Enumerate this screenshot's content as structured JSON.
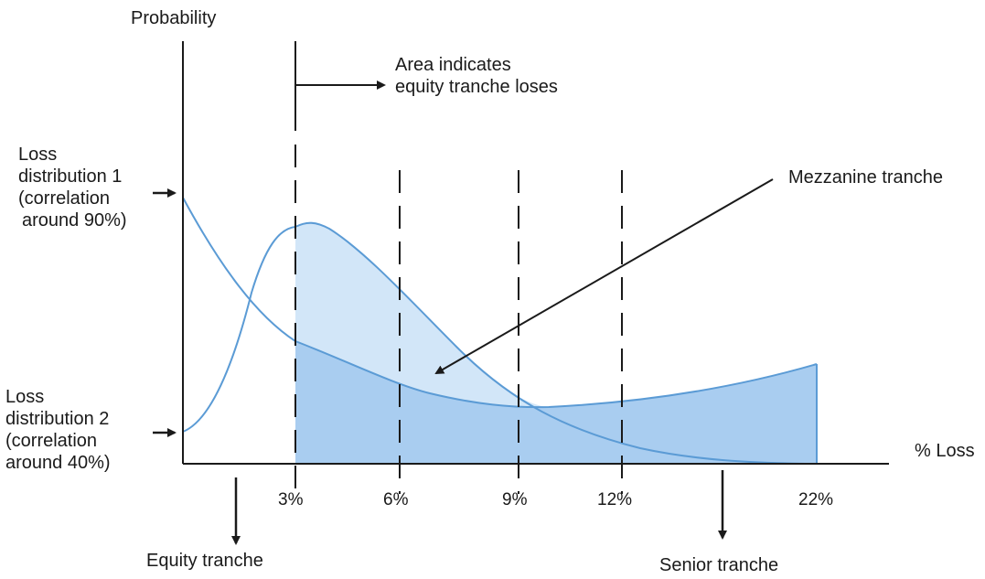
{
  "y_axis_label": "Probability",
  "x_axis_label": "% Loss",
  "ticks": [
    "3%",
    "6%",
    "9%",
    "12%",
    "22%"
  ],
  "annotations": {
    "area_note": [
      "Area indicates",
      "equity tranche loses"
    ],
    "mezzanine": "Mezzanine tranche",
    "equity": "Equity tranche",
    "senior": "Senior tranche",
    "dist1": [
      "Loss",
      "distribution 1",
      "(correlation",
      "around 90%)"
    ],
    "dist2": [
      "Loss",
      "distribution 2",
      "(correlation",
      "around 40%)"
    ]
  },
  "colors": {
    "curve": "#5b9bd5",
    "fill_dark": "#a9cdf0",
    "fill_light": "#d2e6f8",
    "axis": "#1a1a1a"
  }
}
